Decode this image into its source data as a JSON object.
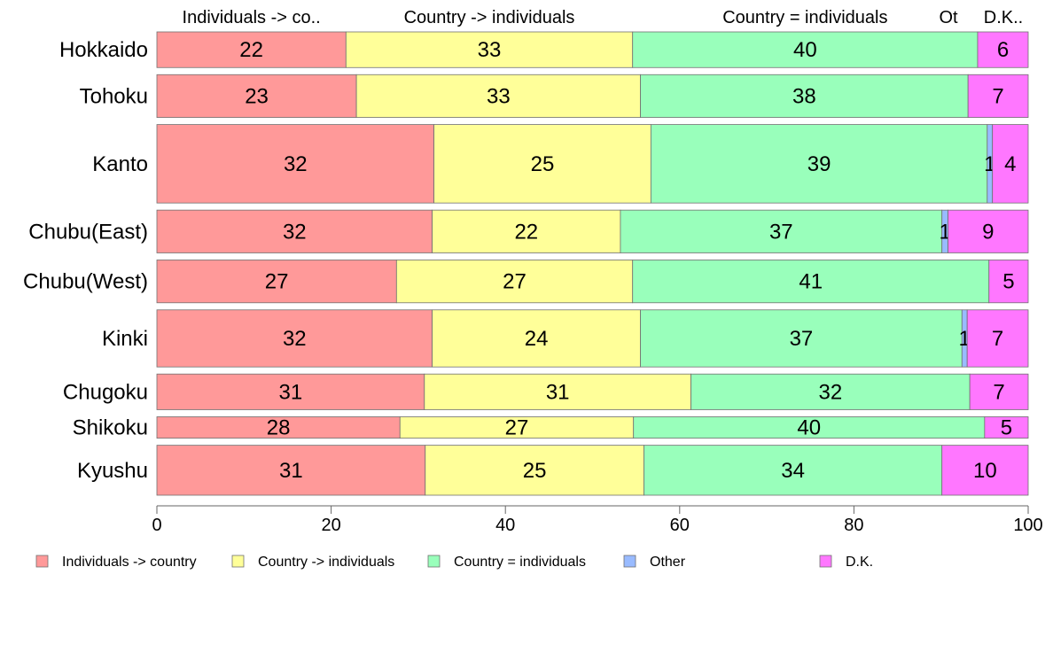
{
  "chart_data": {
    "type": "bar",
    "orientation": "horizontal",
    "stacked": true,
    "categories": [
      "Hokkaido",
      "Tohoku",
      "Kanto",
      "Chubu(East)",
      "Chubu(West)",
      "Kinki",
      "Chugoku",
      "Shikoku",
      "Kyushu"
    ],
    "series": [
      {
        "name": "Individuals -> country",
        "color": "#ff9999",
        "values": [
          21.7,
          22.9,
          31.8,
          31.6,
          27.5,
          31.6,
          30.7,
          27.9,
          30.8
        ],
        "labels": [
          "22",
          "23",
          "32",
          "32",
          "27",
          "32",
          "31",
          "28",
          "31"
        ]
      },
      {
        "name": "Country -> individuals",
        "color": "#ffff99",
        "values": [
          32.9,
          32.6,
          24.9,
          21.6,
          27.1,
          23.9,
          30.6,
          26.8,
          25.1
        ],
        "labels": [
          "33",
          "33",
          "25",
          "22",
          "27",
          "24",
          "31",
          "27",
          "25"
        ]
      },
      {
        "name": "Country = individuals",
        "color": "#99ffbb",
        "values": [
          39.6,
          37.6,
          38.6,
          36.9,
          40.9,
          36.9,
          32.0,
          40.3,
          34.2
        ],
        "labels": [
          "40",
          "38",
          "39",
          "37",
          "41",
          "37",
          "32",
          "40",
          "34"
        ]
      },
      {
        "name": "Other",
        "color": "#99bbff",
        "values": [
          0,
          0,
          0.6,
          0.7,
          0,
          0.6,
          0,
          0,
          0
        ],
        "labels": [
          "",
          "",
          "1",
          "1",
          "",
          "1",
          "",
          "",
          ""
        ]
      },
      {
        "name": "D.K.",
        "color": "#ff77ff",
        "values": [
          5.8,
          6.9,
          4.1,
          9.2,
          4.5,
          7.0,
          6.7,
          5.0,
          9.9
        ],
        "labels": [
          "6",
          "7",
          "4",
          "9",
          "5",
          "7",
          "7",
          "5",
          "10"
        ]
      }
    ],
    "row_weights": [
      5,
      6,
      11,
      6,
      6,
      8,
      5,
      3,
      7
    ],
    "column_headers": [
      "Individuals -> co..",
      "Country -> individuals",
      "Country = individuals",
      "Ot",
      "D.K.."
    ],
    "xlim": [
      0,
      100
    ],
    "xticks": [
      0,
      20,
      40,
      60,
      80,
      100
    ],
    "legend_position": "bottom",
    "grid": false,
    "title": "",
    "xlabel": "",
    "ylabel": ""
  }
}
